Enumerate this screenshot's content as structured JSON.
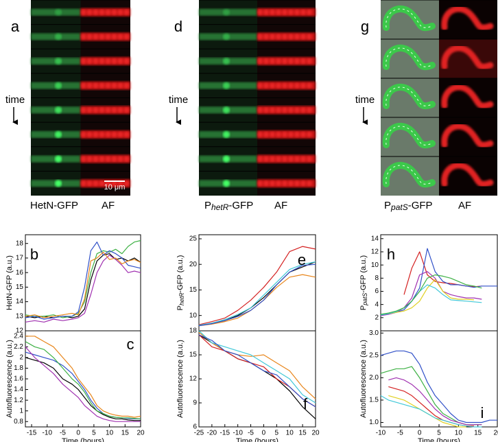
{
  "image_panels": [
    {
      "letter": "a",
      "time_label": "time",
      "gfp_label": [
        "HetN-GFP"
      ],
      "af_label": "AF",
      "scale_label": "10 μm"
    },
    {
      "letter": "d",
      "time_label": "time",
      "gfp_label": [
        "P",
        "hetR",
        "-GFP"
      ],
      "af_label": "AF"
    },
    {
      "letter": "g",
      "time_label": "time",
      "gfp_label": [
        "P",
        "patS",
        "-GFP"
      ],
      "af_label": "AF"
    }
  ],
  "chart_data": [
    {
      "type": "line",
      "panel_label": "b",
      "ylabel": [
        "HetN-GFP (a.u.)"
      ],
      "x": [
        -17,
        -14,
        -11,
        -8,
        -5,
        -2,
        0,
        2,
        4,
        6,
        8,
        10,
        12,
        14,
        16,
        18,
        20
      ],
      "xlim": [
        -17,
        20
      ],
      "ylim": [
        12,
        18.6
      ],
      "yticks": [
        12,
        13,
        14,
        15,
        16,
        17,
        18
      ],
      "series": [
        {
          "color": "#000000",
          "values": [
            13,
            12.9,
            13,
            12.9,
            13,
            12.9,
            13,
            13.5,
            15.5,
            16.8,
            17.2,
            17.3,
            16.9,
            17,
            16.8,
            17,
            16.7
          ]
        },
        {
          "color": "#3cb043",
          "values": [
            13.1,
            13,
            13,
            13.1,
            12.9,
            13,
            13.2,
            14,
            16,
            17.3,
            17.5,
            17.4,
            17.6,
            17.3,
            17.8,
            18.1,
            18.2
          ]
        },
        {
          "color": "#3050c8",
          "values": [
            12.9,
            13,
            12.8,
            12.9,
            13,
            13,
            13.3,
            15,
            17.5,
            18.1,
            17.2,
            17.5,
            17.3,
            17,
            16.5,
            16.4,
            16.3
          ]
        },
        {
          "color": "#a030b0",
          "values": [
            12.6,
            12.7,
            12.6,
            12.8,
            12.7,
            12.8,
            12.9,
            13.2,
            14.5,
            16,
            16.8,
            17.2,
            16.9,
            16.5,
            16,
            16.1,
            16
          ]
        },
        {
          "color": "#e8851a",
          "values": [
            13,
            13.1,
            12.9,
            13,
            13.1,
            13.2,
            13.1,
            14.2,
            16.8,
            17,
            17.4,
            16.9,
            17,
            16.6,
            16.8,
            16.9,
            16.7
          ]
        }
      ]
    },
    {
      "type": "line",
      "panel_label": "c",
      "ylabel": [
        "Autofluorescence (a.u.)"
      ],
      "xlabel": "Time (hours)",
      "x": [
        -17,
        -14,
        -11,
        -8,
        -5,
        -2,
        0,
        2,
        4,
        6,
        8,
        10,
        12,
        14,
        16,
        18,
        20
      ],
      "xlim": [
        -17,
        20
      ],
      "xticks": [
        -15,
        -10,
        -5,
        0,
        5,
        10,
        15,
        20
      ],
      "ylim": [
        0.7,
        2.5
      ],
      "yticks": [
        0.8,
        1.0,
        1.2,
        1.4,
        1.6,
        1.8,
        2.0,
        2.2,
        2.4
      ],
      "series": [
        {
          "color": "#000000",
          "values": [
            2.0,
            1.95,
            1.9,
            1.8,
            1.6,
            1.5,
            1.4,
            1.25,
            1.1,
            1.0,
            0.93,
            0.88,
            0.85,
            0.85,
            0.83,
            0.82,
            0.82
          ]
        },
        {
          "color": "#e8851a",
          "values": [
            2.4,
            2.4,
            2.3,
            2.2,
            2.0,
            1.8,
            1.6,
            1.45,
            1.3,
            1.1,
            1.0,
            0.95,
            0.92,
            0.9,
            0.9,
            0.88,
            0.9
          ]
        },
        {
          "color": "#3050c8",
          "values": [
            2.1,
            2.05,
            2.0,
            1.95,
            1.85,
            1.7,
            1.55,
            1.4,
            1.2,
            1.05,
            0.95,
            0.9,
            0.88,
            0.87,
            0.86,
            0.85,
            0.85
          ]
        },
        {
          "color": "#a030b0",
          "values": [
            2.2,
            2.0,
            1.85,
            1.7,
            1.5,
            1.35,
            1.25,
            1.1,
            1.0,
            0.9,
            0.85,
            0.82,
            0.8,
            0.8,
            0.8,
            0.8,
            0.8
          ]
        },
        {
          "color": "#3cb043",
          "values": [
            2.3,
            2.2,
            2.15,
            2.0,
            1.8,
            1.6,
            1.5,
            1.35,
            1.15,
            1.0,
            0.95,
            0.9,
            0.88,
            0.87,
            0.87,
            0.86,
            0.85
          ]
        }
      ]
    },
    {
      "type": "line",
      "panel_label": "e",
      "ylabel": [
        "P",
        "hetR",
        "-GFP (a.u.)"
      ],
      "x": [
        -25,
        -20,
        -15,
        -10,
        -5,
        0,
        5,
        10,
        15,
        20
      ],
      "xlim": [
        -25,
        20
      ],
      "ylim": [
        7,
        25.8
      ],
      "yticks": [
        10,
        15,
        20,
        25
      ],
      "series": [
        {
          "color": "#000000",
          "values": [
            8,
            8.5,
            9,
            10,
            11.5,
            13.5,
            16,
            18.5,
            19.5,
            20.5
          ]
        },
        {
          "color": "#d42020",
          "values": [
            8.2,
            8.8,
            9.5,
            11,
            13,
            15.5,
            18.5,
            22.5,
            23.5,
            23
          ]
        },
        {
          "color": "#e8851a",
          "values": [
            8,
            8.3,
            8.8,
            9.5,
            11,
            13,
            15.5,
            17.5,
            18,
            17.5
          ]
        },
        {
          "color": "#40c8d8",
          "values": [
            8.1,
            8.5,
            9.2,
            10.2,
            11.5,
            14,
            16.5,
            19,
            20,
            20.5
          ]
        },
        {
          "color": "#3050c8",
          "values": [
            8,
            8.4,
            9,
            9.8,
            11,
            13,
            16,
            18.5,
            19.8,
            20
          ]
        }
      ]
    },
    {
      "type": "line",
      "panel_label": "f",
      "ylabel": [
        "Autofluorescence (a.u.)"
      ],
      "xlabel": "Time (hours)",
      "x": [
        -25,
        -20,
        -15,
        -10,
        -5,
        0,
        5,
        10,
        15,
        20
      ],
      "xlim": [
        -25,
        20
      ],
      "xticks": [
        -25,
        -20,
        -15,
        -10,
        -5,
        0,
        5,
        10,
        15,
        20
      ],
      "ylim": [
        6,
        18
      ],
      "yticks": [
        6,
        9,
        12,
        15,
        18
      ],
      "series": [
        {
          "color": "#000000",
          "values": [
            17.5,
            16.5,
            15.5,
            14.5,
            14,
            13,
            12,
            10.5,
            8.5,
            7
          ]
        },
        {
          "color": "#e8851a",
          "values": [
            17.8,
            16.5,
            15.5,
            15,
            14.8,
            15,
            14,
            13,
            11,
            9.5
          ]
        },
        {
          "color": "#40c8d8",
          "values": [
            18,
            16.5,
            16,
            15.5,
            15,
            14,
            13,
            12,
            10,
            9
          ]
        },
        {
          "color": "#d42020",
          "values": [
            17.5,
            16,
            15.5,
            14.5,
            14,
            13.5,
            12,
            11,
            9.5,
            8.5
          ]
        },
        {
          "color": "#3050c8",
          "values": [
            17.5,
            16.8,
            15.5,
            15,
            14,
            13,
            12.5,
            11,
            9.5,
            8.5
          ]
        }
      ]
    },
    {
      "type": "line",
      "panel_label": "h",
      "ylabel": [
        "P",
        "patS",
        "-GFP (a.u.)"
      ],
      "x": [
        -10,
        -8,
        -6,
        -4,
        -2,
        0,
        2,
        4,
        6,
        8,
        10,
        12,
        14,
        16,
        18,
        20
      ],
      "xlim": [
        -10,
        20
      ],
      "ylim": [
        0,
        14.6
      ],
      "yticks": [
        2,
        4,
        6,
        8,
        10,
        12,
        14
      ],
      "series": [
        {
          "color": "#d42020",
          "values": [
            null,
            null,
            null,
            5.5,
            9.5,
            12,
            8.5,
            7.5,
            7.3,
            7.2,
            7,
            6.8,
            6.7,
            6.8,
            null,
            null
          ]
        },
        {
          "color": "#3050c8",
          "values": [
            2.5,
            2.6,
            2.8,
            3.2,
            4.5,
            6.5,
            12.5,
            9,
            7.5,
            7,
            7,
            6.8,
            6.6,
            6.8,
            6.8,
            6.8
          ]
        },
        {
          "color": "#a030b0",
          "values": [
            2.3,
            2.5,
            2.8,
            3.5,
            5,
            8.5,
            9,
            8,
            6,
            5.5,
            5.2,
            5,
            5,
            4.8,
            null,
            null
          ]
        },
        {
          "color": "#e0d020",
          "values": [
            null,
            2.6,
            2.8,
            3,
            3.5,
            4.5,
            6.5,
            7.8,
            6,
            5,
            4.8,
            4.8,
            4.7,
            null,
            null,
            null
          ]
        },
        {
          "color": "#40c8d8",
          "values": [
            2.4,
            2.6,
            2.9,
            3.5,
            4.5,
            6,
            7,
            6.5,
            5.5,
            4.7,
            4.6,
            4.5,
            4.4,
            4.3,
            null,
            null
          ]
        },
        {
          "color": "#3cb043",
          "values": [
            2.5,
            2.7,
            3,
            3.5,
            4.5,
            6,
            8,
            8.5,
            8.3,
            8,
            7.5,
            7,
            6.8,
            6.5,
            null,
            null
          ]
        }
      ]
    },
    {
      "type": "line",
      "panel_label": "i",
      "ylabel": [
        "Autofluorescence (a.u.)"
      ],
      "xlabel": "Time (hours)",
      "x": [
        -10,
        -8,
        -6,
        -4,
        -2,
        0,
        2,
        4,
        6,
        8,
        10,
        12,
        14,
        16,
        18,
        20
      ],
      "xlim": [
        -10,
        20
      ],
      "xticks": [
        -10,
        -5,
        0,
        5,
        10,
        15,
        20
      ],
      "ylim": [
        0.9,
        3.05
      ],
      "yticks": [
        {
          "value": 1,
          "label": "1.0"
        },
        1.5,
        {
          "value": 2,
          "label": "2.0"
        },
        2.5,
        {
          "value": 3,
          "label": "3.0"
        }
      ],
      "series": [
        {
          "color": "#3050c8",
          "values": [
            2.5,
            2.55,
            2.6,
            2.6,
            2.55,
            2.3,
            1.9,
            1.6,
            1.4,
            1.2,
            1.05,
            1.0,
            1.0,
            1.0,
            1.05,
            1.05
          ]
        },
        {
          "color": "#3cb043",
          "values": [
            2.1,
            2.15,
            2.2,
            2.2,
            2.25,
            2.0,
            1.7,
            1.4,
            1.2,
            1.1,
            1.0,
            0.95,
            0.95,
            0.95,
            null,
            null
          ]
        },
        {
          "color": "#d42020",
          "values": [
            null,
            1.8,
            1.75,
            1.7,
            1.6,
            1.45,
            1.3,
            1.15,
            1.05,
            1.0,
            0.95,
            0.92,
            0.92,
            null,
            null,
            null
          ]
        },
        {
          "color": "#a030b0",
          "values": [
            null,
            1.95,
            2.0,
            1.95,
            1.85,
            1.7,
            1.5,
            1.3,
            1.15,
            1.05,
            1.0,
            0.95,
            0.95,
            0.95,
            null,
            null
          ]
        },
        {
          "color": "#e0d020",
          "values": [
            null,
            1.6,
            1.55,
            1.5,
            1.4,
            1.3,
            1.2,
            1.1,
            1.0,
            0.95,
            0.9,
            0.9,
            null,
            null,
            null,
            null
          ]
        },
        {
          "color": "#40c8d8",
          "values": [
            1.6,
            1.5,
            1.45,
            1.4,
            1.35,
            1.3,
            1.2,
            1.1,
            1.05,
            1.0,
            0.95,
            0.92,
            0.9,
            0.9,
            null,
            null
          ]
        }
      ]
    }
  ]
}
